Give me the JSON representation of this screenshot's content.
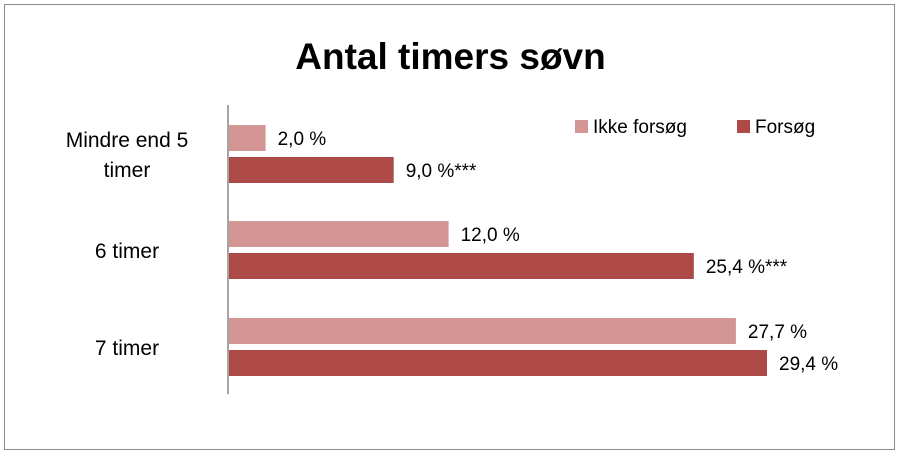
{
  "chart_data": {
    "type": "bar",
    "orientation": "horizontal",
    "title": "Antal timers søvn",
    "categories": [
      [
        "Mindre end 5",
        "timer"
      ],
      [
        "6 timer"
      ],
      [
        "7 timer"
      ]
    ],
    "series": [
      {
        "name": "Ikke forsøg",
        "color": "#d49595",
        "values": [
          2.0,
          12.0,
          27.7
        ],
        "labels": [
          "2,0 %",
          "12,0 %",
          "27,7 %"
        ]
      },
      {
        "name": "Forsøg",
        "color": "#ad4a48",
        "values": [
          9.0,
          25.4,
          29.4
        ],
        "labels": [
          "9,0 %***",
          "25,4 %***",
          "29,4 %"
        ]
      }
    ],
    "xlim": [
      0,
      30
    ],
    "x_axis_visible": false,
    "grid": false,
    "legend_position": "top-right"
  }
}
